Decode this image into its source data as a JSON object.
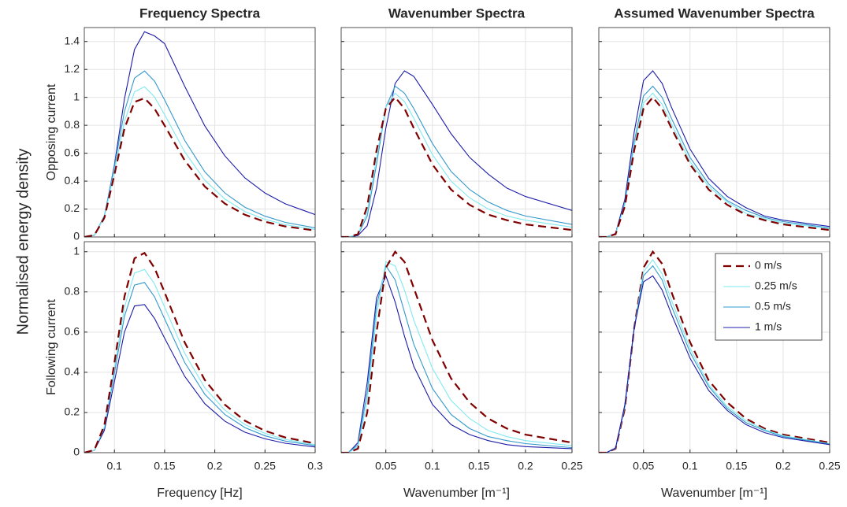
{
  "ylabel": "Normalised energy density",
  "chart_data": [
    {
      "type": "line",
      "title": "Frequency Spectra",
      "ylabel": "Opposing current",
      "grid": true,
      "show_xticklabels": false,
      "show_yticklabels": true,
      "x": [
        0.07,
        0.08,
        0.09,
        0.1,
        0.11,
        0.12,
        0.13,
        0.14,
        0.15,
        0.17,
        0.19,
        0.21,
        0.23,
        0.25,
        0.27,
        0.3
      ],
      "xlim": [
        0.07,
        0.3
      ],
      "xticks": [
        0.1,
        0.15,
        0.2,
        0.25,
        0.3
      ],
      "ylim": [
        0,
        1.5
      ],
      "yticks": [
        0,
        0.2,
        0.4,
        0.6,
        0.8,
        1,
        1.2,
        1.4
      ],
      "series": [
        {
          "color": "#1c1ca8",
          "linestyle": "solid",
          "values": [
            0,
            0.012,
            0.143,
            0.517,
            0.989,
            1.343,
            1.47,
            1.44,
            1.385,
            1.08,
            0.796,
            0.581,
            0.423,
            0.315,
            0.238,
            0.16
          ]
        },
        {
          "color": "#3399cc",
          "linestyle": "solid",
          "values": [
            0,
            0.014,
            0.152,
            0.507,
            0.899,
            1.138,
            1.189,
            1.116,
            0.982,
            0.692,
            0.467,
            0.315,
            0.213,
            0.149,
            0.105,
            0.065
          ]
        },
        {
          "color": "#7fe9f0",
          "linestyle": "solid",
          "values": [
            0,
            0.013,
            0.143,
            0.471,
            0.827,
            1.039,
            1.076,
            1.003,
            0.876,
            0.61,
            0.407,
            0.272,
            0.182,
            0.126,
            0.088,
            0.054
          ]
        },
        {
          "color": "#800000",
          "linestyle": "dashed",
          "values": [
            0,
            0.013,
            0.137,
            0.447,
            0.777,
            0.967,
            0.994,
            0.919,
            0.798,
            0.549,
            0.362,
            0.239,
            0.159,
            0.109,
            0.076,
            0.046
          ]
        }
      ]
    },
    {
      "type": "line",
      "title": "Wavenumber Spectra",
      "grid": true,
      "show_xticklabels": false,
      "show_yticklabels": false,
      "x": [
        0.002,
        0.01,
        0.02,
        0.03,
        0.04,
        0.05,
        0.06,
        0.07,
        0.08,
        0.1,
        0.12,
        0.14,
        0.16,
        0.18,
        0.2,
        0.25
      ],
      "xlim": [
        0.002,
        0.25
      ],
      "xticks": [
        0.05,
        0.1,
        0.15,
        0.2,
        0.25
      ],
      "ylim": [
        0,
        1.5
      ],
      "yticks": [
        0,
        0.2,
        0.4,
        0.6,
        0.8,
        1,
        1.2,
        1.4
      ],
      "series": [
        {
          "color": "#1c1ca8",
          "linestyle": "solid",
          "values": [
            0,
            0,
            0.01,
            0.08,
            0.35,
            0.78,
            1.1,
            1.19,
            1.15,
            0.95,
            0.74,
            0.57,
            0.45,
            0.35,
            0.29,
            0.19
          ]
        },
        {
          "color": "#3399cc",
          "linestyle": "solid",
          "values": [
            0,
            0,
            0.015,
            0.15,
            0.52,
            0.93,
            1.08,
            1.03,
            0.92,
            0.67,
            0.47,
            0.34,
            0.25,
            0.19,
            0.15,
            0.09
          ]
        },
        {
          "color": "#7fe9f0",
          "linestyle": "solid",
          "values": [
            0,
            0,
            0.018,
            0.18,
            0.57,
            0.93,
            1.03,
            0.97,
            0.85,
            0.59,
            0.4,
            0.28,
            0.2,
            0.15,
            0.12,
            0.07
          ]
        },
        {
          "color": "#800000",
          "linestyle": "dashed",
          "values": [
            0,
            0,
            0.02,
            0.22,
            0.62,
            0.92,
            1,
            0.92,
            0.78,
            0.52,
            0.34,
            0.23,
            0.16,
            0.12,
            0.09,
            0.05
          ]
        }
      ]
    },
    {
      "type": "line",
      "title": "Assumed Wavenumber Spectra",
      "grid": true,
      "show_xticklabels": false,
      "show_yticklabels": false,
      "x": [
        0.002,
        0.01,
        0.02,
        0.03,
        0.04,
        0.05,
        0.06,
        0.07,
        0.08,
        0.1,
        0.12,
        0.14,
        0.16,
        0.18,
        0.2,
        0.25
      ],
      "xlim": [
        0.002,
        0.25
      ],
      "xticks": [
        0.05,
        0.1,
        0.15,
        0.2,
        0.25
      ],
      "ylim": [
        0,
        1.5
      ],
      "yticks": [
        0,
        0.2,
        0.4,
        0.6,
        0.8,
        1,
        1.2,
        1.4
      ],
      "series": [
        {
          "color": "#1c1ca8",
          "linestyle": "solid",
          "values": [
            0,
            0,
            0.025,
            0.27,
            0.75,
            1.12,
            1.19,
            1.1,
            0.93,
            0.63,
            0.42,
            0.29,
            0.21,
            0.15,
            0.12,
            0.075
          ]
        },
        {
          "color": "#3399cc",
          "linestyle": "solid",
          "values": [
            0,
            0,
            0.022,
            0.24,
            0.68,
            1.01,
            1.08,
            1,
            0.85,
            0.57,
            0.38,
            0.26,
            0.19,
            0.14,
            0.11,
            0.065
          ]
        },
        {
          "color": "#7fe9f0",
          "linestyle": "solid",
          "values": [
            0,
            0,
            0.021,
            0.23,
            0.65,
            0.96,
            1.03,
            0.95,
            0.81,
            0.54,
            0.36,
            0.25,
            0.17,
            0.13,
            0.1,
            0.06
          ]
        },
        {
          "color": "#800000",
          "linestyle": "dashed",
          "values": [
            0,
            0,
            0.02,
            0.22,
            0.62,
            0.92,
            1,
            0.92,
            0.78,
            0.52,
            0.34,
            0.23,
            0.16,
            0.12,
            0.09,
            0.05
          ]
        }
      ]
    },
    {
      "type": "line",
      "ylabel": "Following current",
      "xlabel": "Frequency [Hz]",
      "grid": true,
      "show_xticklabels": true,
      "show_yticklabels": true,
      "x": [
        0.07,
        0.08,
        0.09,
        0.1,
        0.11,
        0.12,
        0.13,
        0.14,
        0.15,
        0.17,
        0.19,
        0.21,
        0.23,
        0.25,
        0.27,
        0.3
      ],
      "xlim": [
        0.07,
        0.3
      ],
      "xticks": [
        0.1,
        0.15,
        0.2,
        0.25,
        0.3
      ],
      "ylim": [
        0,
        1.05
      ],
      "yticks": [
        0,
        0.2,
        0.4,
        0.6,
        0.8,
        1
      ],
      "series": [
        {
          "color": "#1c1ca8",
          "linestyle": "solid",
          "values": [
            0,
            0.011,
            0.111,
            0.354,
            0.6,
            0.73,
            0.737,
            0.668,
            0.57,
            0.38,
            0.244,
            0.157,
            0.102,
            0.069,
            0.047,
            0.028
          ]
        },
        {
          "color": "#3399cc",
          "linestyle": "solid",
          "values": [
            0,
            0.012,
            0.123,
            0.396,
            0.679,
            0.834,
            0.847,
            0.775,
            0.666,
            0.449,
            0.291,
            0.19,
            0.125,
            0.084,
            0.058,
            0.035
          ]
        },
        {
          "color": "#7fe9f0",
          "linestyle": "solid",
          "values": [
            0,
            0.012,
            0.129,
            0.419,
            0.723,
            0.894,
            0.912,
            0.84,
            0.725,
            0.495,
            0.323,
            0.212,
            0.14,
            0.096,
            0.066,
            0.04
          ]
        },
        {
          "color": "#800000",
          "linestyle": "dashed",
          "values": [
            0,
            0.013,
            0.137,
            0.447,
            0.777,
            0.967,
            0.994,
            0.919,
            0.798,
            0.549,
            0.362,
            0.239,
            0.159,
            0.109,
            0.076,
            0.046
          ]
        }
      ]
    },
    {
      "type": "line",
      "xlabel": "Wavenumber [m⁻¹]",
      "grid": true,
      "show_xticklabels": true,
      "show_yticklabels": false,
      "x": [
        0.002,
        0.01,
        0.02,
        0.03,
        0.04,
        0.05,
        0.06,
        0.07,
        0.08,
        0.1,
        0.12,
        0.14,
        0.16,
        0.18,
        0.2,
        0.25
      ],
      "xlim": [
        0.002,
        0.25
      ],
      "xticks": [
        0.05,
        0.1,
        0.15,
        0.2,
        0.25
      ],
      "ylim": [
        0,
        1.05
      ],
      "yticks": [
        0,
        0.2,
        0.4,
        0.6,
        0.8,
        1
      ],
      "series": [
        {
          "color": "#1c1ca8",
          "linestyle": "solid",
          "values": [
            0,
            0.001,
            0.05,
            0.35,
            0.77,
            0.88,
            0.75,
            0.58,
            0.43,
            0.24,
            0.14,
            0.09,
            0.06,
            0.04,
            0.03,
            0.02
          ]
        },
        {
          "color": "#3399cc",
          "linestyle": "solid",
          "values": [
            0,
            0,
            0.04,
            0.3,
            0.73,
            0.93,
            0.86,
            0.7,
            0.54,
            0.32,
            0.19,
            0.12,
            0.08,
            0.06,
            0.045,
            0.025
          ]
        },
        {
          "color": "#7fe9f0",
          "linestyle": "solid",
          "values": [
            0,
            0,
            0.03,
            0.26,
            0.68,
            0.95,
            0.93,
            0.81,
            0.66,
            0.42,
            0.26,
            0.17,
            0.11,
            0.08,
            0.06,
            0.035
          ]
        },
        {
          "color": "#800000",
          "linestyle": "dashed",
          "values": [
            0,
            0,
            0.02,
            0.2,
            0.6,
            0.92,
            1,
            0.95,
            0.82,
            0.56,
            0.37,
            0.25,
            0.17,
            0.12,
            0.09,
            0.05
          ]
        }
      ]
    },
    {
      "type": "line",
      "xlabel": "Wavenumber [m⁻¹]",
      "grid": true,
      "show_xticklabels": true,
      "show_yticklabels": false,
      "legend": "northeast",
      "x": [
        0.002,
        0.01,
        0.02,
        0.03,
        0.04,
        0.05,
        0.06,
        0.07,
        0.08,
        0.1,
        0.12,
        0.14,
        0.16,
        0.18,
        0.2,
        0.25
      ],
      "xlim": [
        0.002,
        0.25
      ],
      "xticks": [
        0.05,
        0.1,
        0.15,
        0.2,
        0.25
      ],
      "ylim": [
        0,
        1.05
      ],
      "yticks": [
        0,
        0.2,
        0.4,
        0.6,
        0.8,
        1
      ],
      "series": [
        {
          "name": "0 m/s",
          "color": "#800000",
          "linestyle": "dashed",
          "values": [
            0,
            0,
            0.02,
            0.22,
            0.62,
            0.92,
            1,
            0.94,
            0.8,
            0.55,
            0.36,
            0.25,
            0.17,
            0.12,
            0.09,
            0.05
          ]
        },
        {
          "name": "0.25 m/s",
          "color": "#7fe9f0",
          "linestyle": "solid",
          "values": [
            0,
            0,
            0.021,
            0.23,
            0.62,
            0.9,
            0.96,
            0.89,
            0.76,
            0.52,
            0.34,
            0.23,
            0.16,
            0.115,
            0.085,
            0.045
          ]
        },
        {
          "name": "0.5 m/s",
          "color": "#3399cc",
          "linestyle": "solid",
          "values": [
            0,
            0,
            0.022,
            0.23,
            0.62,
            0.88,
            0.93,
            0.86,
            0.73,
            0.5,
            0.33,
            0.22,
            0.15,
            0.11,
            0.08,
            0.043
          ]
        },
        {
          "name": "1 m/s",
          "color": "#1c1ca8",
          "linestyle": "solid",
          "values": [
            0,
            0,
            0.023,
            0.24,
            0.62,
            0.85,
            0.88,
            0.81,
            0.69,
            0.47,
            0.31,
            0.21,
            0.14,
            0.1,
            0.075,
            0.04
          ]
        }
      ]
    }
  ]
}
